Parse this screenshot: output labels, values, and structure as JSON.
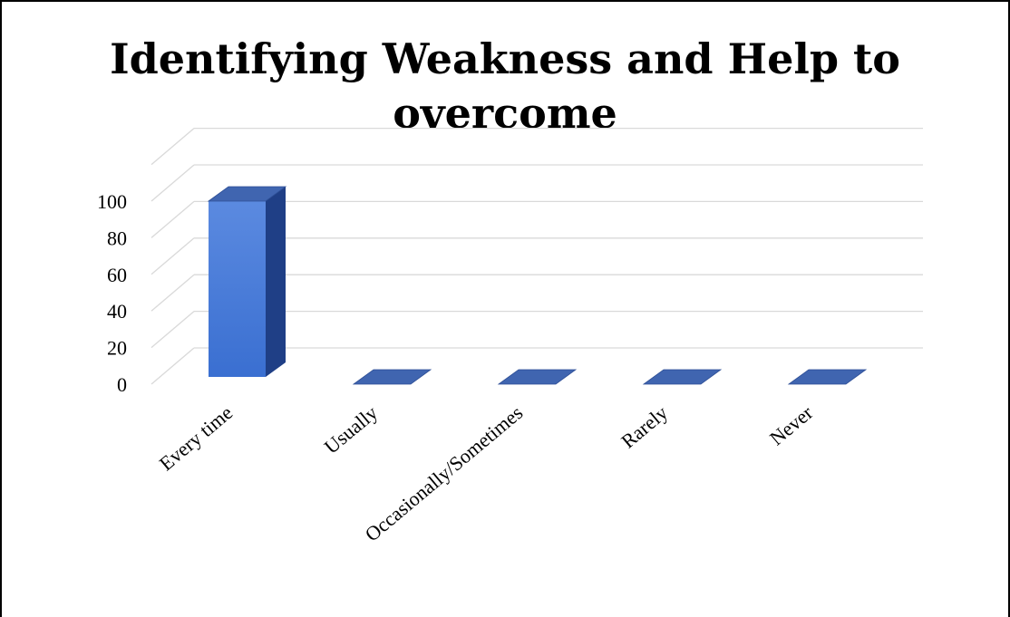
{
  "chart_data": {
    "type": "bar",
    "title_lines": [
      "Identifying Weakness and Help to",
      "overcome"
    ],
    "categories": [
      "Every time",
      "Usually",
      "Occasionally/Sometimes",
      "Rarely",
      "Never"
    ],
    "values": [
      100,
      0,
      0,
      0,
      0
    ],
    "yticks": [
      0,
      20,
      40,
      60,
      80,
      100
    ],
    "ylim": [
      0,
      100
    ],
    "grid": true,
    "legend": "none",
    "colors": {
      "bar_front": "#3a6fd1",
      "bar_front_light": "#5b8ae0",
      "bar_side": "#1f3f86",
      "bar_top": "#4065b0",
      "gridline": "#d9d9d9"
    }
  }
}
